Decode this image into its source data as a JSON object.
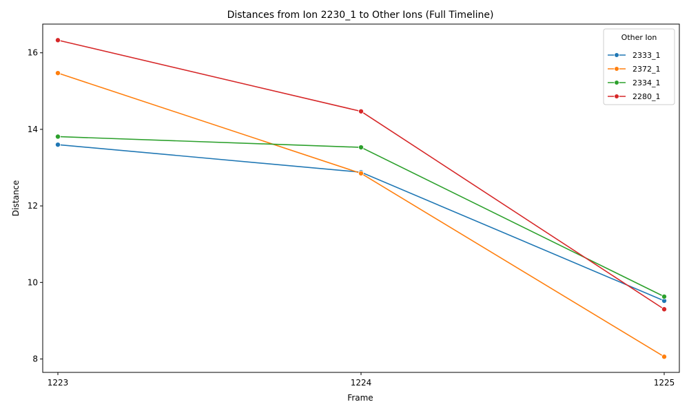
{
  "chart_data": {
    "type": "line",
    "title": "Distances from Ion 2230_1 to Other Ions (Full Timeline)",
    "xlabel": "Frame",
    "ylabel": "Distance",
    "x": [
      1223,
      1224,
      1225
    ],
    "xticks": [
      "1223",
      "1224",
      "1225"
    ],
    "yticks": [
      "8",
      "10",
      "12",
      "14",
      "16"
    ],
    "xlim": [
      1222.95,
      1225.05
    ],
    "ylim": [
      7.65,
      16.75
    ],
    "grid": false,
    "legend": {
      "title": "Other Ion",
      "placement": "top-right"
    },
    "series": [
      {
        "name": "2333_1",
        "color": "#1f77b4",
        "values": [
          13.6,
          12.88,
          9.52
        ]
      },
      {
        "name": "2372_1",
        "color": "#ff7f0e",
        "values": [
          15.47,
          12.85,
          8.06
        ]
      },
      {
        "name": "2334_1",
        "color": "#2ca02c",
        "values": [
          13.81,
          13.53,
          9.63
        ]
      },
      {
        "name": "2280_1",
        "color": "#d62728",
        "values": [
          16.33,
          14.47,
          9.3
        ]
      }
    ]
  }
}
